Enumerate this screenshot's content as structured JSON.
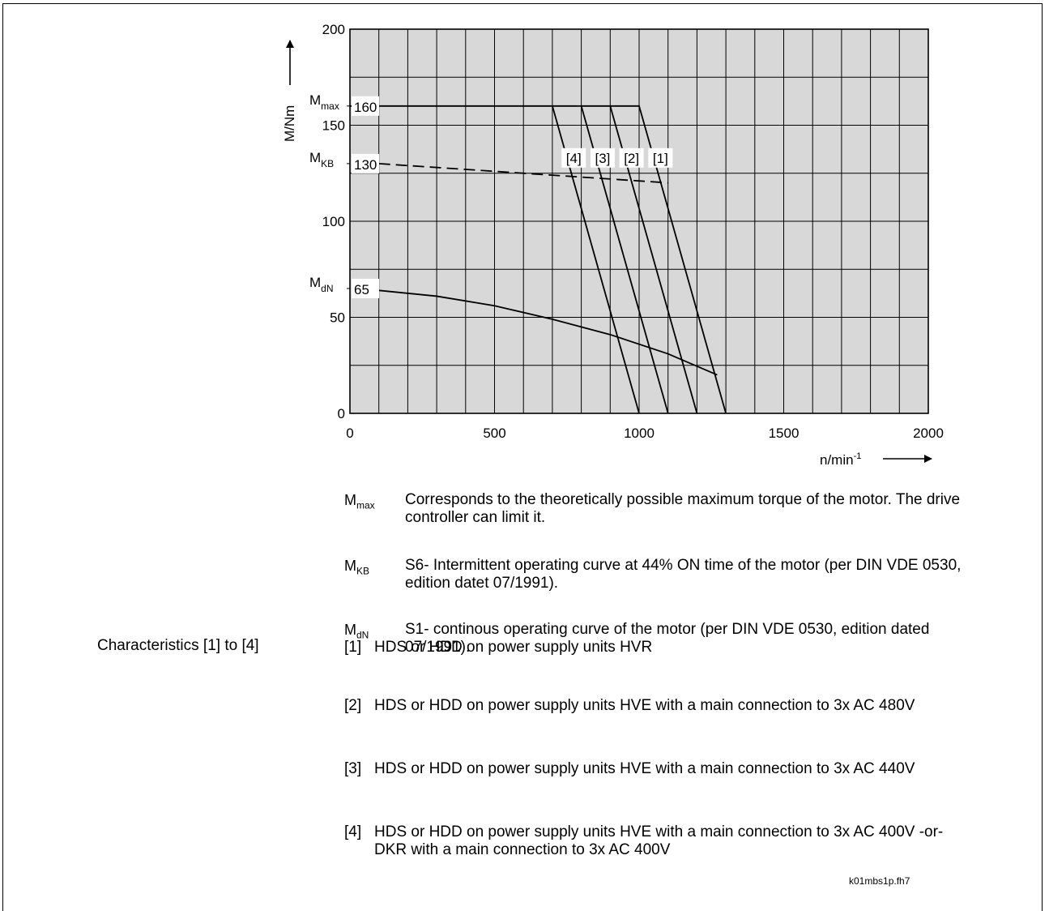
{
  "chart_data": {
    "type": "line",
    "xlabel": "n/min",
    "xlabel_sup": "-1",
    "ylabel": "M/Nm",
    "xlim": [
      0,
      2000
    ],
    "ylim": [
      0,
      200
    ],
    "x_ticks": [
      "0",
      "500",
      "1000",
      "1500",
      "2000"
    ],
    "x_tick_values": [
      0,
      500,
      1000,
      1500,
      2000
    ],
    "y_ticks": [
      "0",
      "50",
      "100",
      "150",
      "200"
    ],
    "y_tick_values": [
      0,
      50,
      100,
      150,
      200
    ],
    "grid": true,
    "background": "#d8d8d8",
    "markers": [
      {
        "symbol": "M",
        "sub": "max",
        "value_label": "160",
        "y": 160
      },
      {
        "symbol": "M",
        "sub": "KB",
        "value_label": "130",
        "y": 130
      },
      {
        "symbol": "M",
        "sub": "dN",
        "value_label": "65",
        "y": 65
      }
    ],
    "series": [
      {
        "name": "[1]",
        "style": "solid",
        "points": [
          [
            0,
            160
          ],
          [
            1000,
            160
          ],
          [
            1300,
            0
          ]
        ],
        "label_at": [
          1085,
          133
        ]
      },
      {
        "name": "[2]",
        "style": "solid",
        "points": [
          [
            900,
            160
          ],
          [
            1200,
            0
          ]
        ],
        "label_at": [
          985,
          133
        ]
      },
      {
        "name": "[3]",
        "style": "solid",
        "points": [
          [
            800,
            160
          ],
          [
            1100,
            0
          ]
        ],
        "label_at": [
          885,
          133
        ]
      },
      {
        "name": "[4]",
        "style": "solid",
        "points": [
          [
            700,
            160
          ],
          [
            1000,
            0
          ]
        ],
        "label_at": [
          785,
          133
        ]
      },
      {
        "name": "",
        "style": "dashed",
        "points": [
          [
            100,
            130
          ],
          [
            400,
            127
          ],
          [
            700,
            124
          ],
          [
            1100,
            120
          ]
        ]
      },
      {
        "name": "",
        "style": "solid",
        "points": [
          [
            100,
            64
          ],
          [
            300,
            61
          ],
          [
            500,
            56
          ],
          [
            700,
            49
          ],
          [
            900,
            41
          ],
          [
            1100,
            31
          ],
          [
            1270,
            20
          ]
        ]
      }
    ]
  },
  "descriptions": [
    {
      "symbol": "M",
      "sub": "max",
      "text": "Corresponds to the theoretically possible maximum torque of the motor. The drive controller can limit it."
    },
    {
      "symbol": "M",
      "sub": "KB",
      "text": "S6- Intermittent operating curve at 44% ON time of the motor (per DIN VDE 0530, edition datet 07/1991)."
    },
    {
      "symbol": "M",
      "sub": "dN",
      "text": "S1- continous operating curve of the motor (per DIN VDE 0530, edition dated 07/1991)."
    }
  ],
  "characteristics_heading": "Characteristics [1] to [4]",
  "characteristics": [
    {
      "num": "[1]",
      "text": "HDS or HDD on power supply units HVR"
    },
    {
      "num": "[2]",
      "text": "HDS or HDD on power supply units HVE with a main connection to 3x AC 480V"
    },
    {
      "num": "[3]",
      "text": "HDS or HDD on power supply units HVE with a main connection to 3x AC 440V"
    },
    {
      "num": "[4]",
      "text": "HDS or HDD on power supply units HVE with a main connection to 3x AC 400V -or- DKR  with a main connection to 3x AC 400V"
    }
  ],
  "file_id": "k01mbs1p.fh7"
}
